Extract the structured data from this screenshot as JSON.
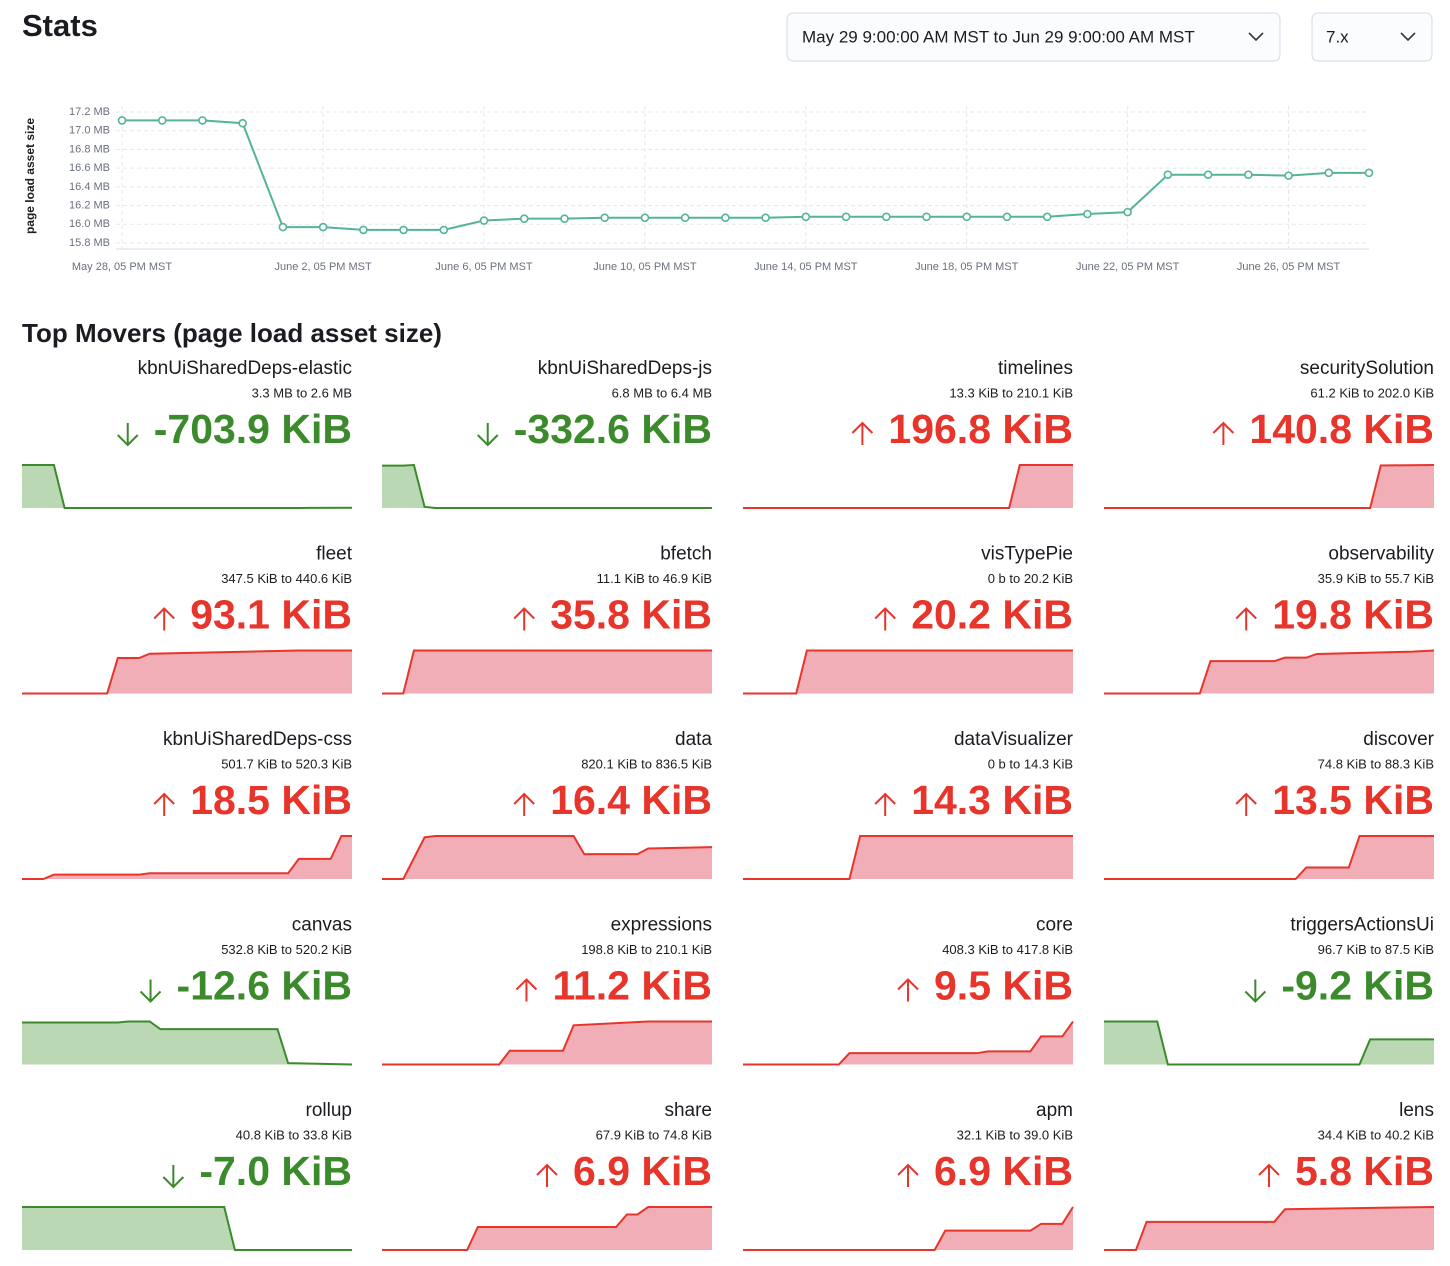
{
  "header": {
    "title": "Stats",
    "time_range": "May 29 9:00:00 AM MST to Jun 29 9:00:00 AM MST",
    "branch": "7.x"
  },
  "chart_data": {
    "type": "line",
    "y_label": "page load asset size",
    "color": "#54b399",
    "grid": true,
    "categories": [
      "May 28, 05 PM MST",
      null,
      null,
      null,
      null,
      "June 2, 05 PM MST",
      null,
      null,
      null,
      "June 6, 05 PM MST",
      null,
      null,
      null,
      "June 10, 05 PM MST",
      null,
      null,
      null,
      "June 14, 05 PM MST",
      null,
      null,
      null,
      "June 18, 05 PM MST",
      null,
      null,
      null,
      "June 22, 05 PM MST",
      null,
      null,
      null,
      "June 26, 05 PM MST",
      null,
      null
    ],
    "values": [
      17.11,
      17.11,
      17.11,
      17.08,
      15.97,
      15.97,
      15.94,
      15.94,
      15.94,
      16.04,
      16.06,
      16.06,
      16.07,
      16.07,
      16.07,
      16.07,
      16.07,
      16.08,
      16.08,
      16.08,
      16.08,
      16.08,
      16.08,
      16.08,
      16.11,
      16.13,
      16.53,
      16.53,
      16.53,
      16.52,
      16.55,
      16.55
    ],
    "ylim": [
      15.8,
      17.2
    ],
    "yticks": [
      {
        "value": 15.8,
        "label": "15.8 MB"
      },
      {
        "value": 16.0,
        "label": "16.0 MB"
      },
      {
        "value": 16.2,
        "label": "16.2 MB"
      },
      {
        "value": 16.4,
        "label": "16.4 MB"
      },
      {
        "value": 16.6,
        "label": "16.6 MB"
      },
      {
        "value": 16.8,
        "label": "16.8 MB"
      },
      {
        "value": 17.0,
        "label": "17.0 MB"
      },
      {
        "value": 17.2,
        "label": "17.2 MB"
      }
    ]
  },
  "top_movers": {
    "title": "Top Movers (page load asset size)",
    "colors": {
      "increase": "#e7352c",
      "increase_fill": "#f2aeb7",
      "decrease": "#3b8a2b",
      "decrease_fill": "#b9d8b3"
    },
    "cards": [
      {
        "name": "kbnUiSharedDeps-elastic",
        "range": "3.3 MB to 2.6 MB",
        "delta": {
          "value": -703.9,
          "label": "-703.9 KiB"
        },
        "trend": {
          "x": [
            0,
            3,
            4,
            26,
            27,
            31
          ],
          "values": [
            3379,
            3379,
            2670,
            2670,
            2673,
            2675
          ]
        }
      },
      {
        "name": "kbnUiSharedDeps-js",
        "range": "6.8 MB to 6.4 MB",
        "delta": {
          "value": -332.6,
          "label": "-332.6 KiB"
        },
        "trend": {
          "x": [
            0,
            2,
            3,
            4,
            5,
            31
          ],
          "values": [
            6958,
            6958,
            6963,
            6640,
            6631,
            6631
          ]
        }
      },
      {
        "name": "timelines",
        "range": "13.3 KiB to 210.1 KiB",
        "delta": {
          "value": 196.8,
          "label": "196.8 KiB"
        },
        "trend": {
          "x": [
            0,
            25,
            26,
            31
          ],
          "values": [
            13.3,
            13.3,
            210.1,
            210.1
          ]
        }
      },
      {
        "name": "securitySolution",
        "range": "61.2 KiB to 202.0 KiB",
        "delta": {
          "value": 140.8,
          "label": "140.8 KiB"
        },
        "trend": {
          "x": [
            0,
            25,
            26,
            31
          ],
          "values": [
            61.2,
            61.2,
            200.5,
            202.0
          ]
        }
      },
      {
        "name": "fleet",
        "range": "347.5 KiB to 440.6 KiB",
        "delta": {
          "value": 93.1,
          "label": "93.1 KiB"
        },
        "trend": {
          "x": [
            0,
            8,
            9,
            11,
            12,
            26,
            31
          ],
          "values": [
            347.5,
            347.5,
            424.3,
            424.3,
            433.6,
            440.6,
            440.6
          ]
        }
      },
      {
        "name": "bfetch",
        "range": "11.1 KiB to 46.9 KiB",
        "delta": {
          "value": 35.8,
          "label": "35.8 KiB"
        },
        "trend": {
          "x": [
            0,
            2,
            3,
            31
          ],
          "values": [
            11.1,
            11.1,
            46.9,
            46.9
          ]
        }
      },
      {
        "name": "visTypePie",
        "range": "0 b to 20.2 KiB",
        "delta": {
          "value": 20.2,
          "label": "20.2 KiB"
        },
        "trend": {
          "x": [
            0,
            5,
            6,
            31
          ],
          "values": [
            0,
            0,
            20.2,
            20.2
          ]
        }
      },
      {
        "name": "observability",
        "range": "35.9 KiB to 55.7 KiB",
        "delta": {
          "value": 19.8,
          "label": "19.8 KiB"
        },
        "trend": {
          "x": [
            0,
            9,
            10,
            16,
            17,
            19,
            20,
            29,
            31
          ],
          "values": [
            35.9,
            35.9,
            50.8,
            50.8,
            52.4,
            52.4,
            54.1,
            55.2,
            55.7
          ]
        }
      },
      {
        "name": "kbnUiSharedDeps-css",
        "range": "501.7 KiB to 520.3 KiB",
        "delta": {
          "value": 18.5,
          "label": "18.5 KiB"
        },
        "trend": {
          "x": [
            0,
            2,
            3,
            11,
            12,
            25,
            26,
            29,
            30,
            31
          ],
          "values": [
            501.7,
            501.7,
            503.6,
            503.6,
            504.2,
            504.2,
            510.4,
            510.4,
            520.3,
            520.3
          ]
        }
      },
      {
        "name": "data",
        "range": "820.1 KiB to 836.5 KiB",
        "delta": {
          "value": 16.4,
          "label": "16.4 KiB"
        },
        "trend": {
          "x": [
            0,
            2,
            4,
            5,
            18,
            19,
            24,
            25,
            31
          ],
          "values": [
            820.1,
            820.1,
            841.5,
            842.2,
            842.2,
            832.9,
            832.9,
            835.8,
            836.5
          ]
        }
      },
      {
        "name": "dataVisualizer",
        "range": "0 b to 14.3 KiB",
        "delta": {
          "value": 14.3,
          "label": "14.3 KiB"
        },
        "trend": {
          "x": [
            0,
            10,
            11,
            31
          ],
          "values": [
            0,
            0,
            14.3,
            14.3
          ]
        }
      },
      {
        "name": "discover",
        "range": "74.8 KiB to 88.3 KiB",
        "delta": {
          "value": 13.5,
          "label": "13.5 KiB"
        },
        "trend": {
          "x": [
            0,
            18,
            19,
            23,
            24,
            31
          ],
          "values": [
            74.8,
            74.8,
            78.4,
            78.4,
            88.3,
            88.3
          ]
        }
      },
      {
        "name": "canvas",
        "range": "532.8 KiB to 520.2 KiB",
        "delta": {
          "value": -12.6,
          "label": "-12.6 KiB"
        },
        "trend": {
          "x": [
            0,
            9,
            10,
            12,
            13,
            24,
            25,
            31
          ],
          "values": [
            532.8,
            532.8,
            533.1,
            533.1,
            530.8,
            530.8,
            520.6,
            520.2
          ]
        }
      },
      {
        "name": "expressions",
        "range": "198.8 KiB to 210.1 KiB",
        "delta": {
          "value": 11.2,
          "label": "11.2 KiB"
        },
        "trend": {
          "x": [
            0,
            11,
            12,
            17,
            18,
            25,
            31
          ],
          "values": [
            198.8,
            198.8,
            202.4,
            202.4,
            209.1,
            210.1,
            210.1
          ]
        }
      },
      {
        "name": "core",
        "range": "408.3 KiB to 417.8 KiB",
        "delta": {
          "value": 9.5,
          "label": "9.5 KiB"
        },
        "trend": {
          "x": [
            0,
            9,
            10,
            22,
            23,
            27,
            28,
            30,
            31
          ],
          "values": [
            408.3,
            408.3,
            410.8,
            410.8,
            411.2,
            411.2,
            414.5,
            414.5,
            417.8
          ]
        }
      },
      {
        "name": "triggersActionsUi",
        "range": "96.7 KiB to 87.5 KiB",
        "delta": {
          "value": -9.2,
          "label": "-9.2 KiB"
        },
        "trend": {
          "x": [
            0,
            5,
            6,
            24,
            25,
            31
          ],
          "values": [
            96.7,
            96.7,
            74.5,
            74.5,
            87.5,
            87.5
          ]
        }
      },
      {
        "name": "rollup",
        "range": "40.8 KiB to 33.8 KiB",
        "delta": {
          "value": -7.0,
          "label": "-7.0 KiB"
        },
        "trend": {
          "x": [
            0,
            19,
            20,
            31
          ],
          "values": [
            40.8,
            40.8,
            33.8,
            33.8
          ]
        }
      },
      {
        "name": "share",
        "range": "67.9 KiB to 74.8 KiB",
        "delta": {
          "value": 6.9,
          "label": "6.9 KiB"
        },
        "trend": {
          "x": [
            0,
            8,
            9,
            22,
            23,
            24,
            25,
            31
          ],
          "values": [
            67.9,
            67.9,
            71.6,
            71.6,
            73.6,
            73.6,
            74.8,
            74.8
          ]
        }
      },
      {
        "name": "apm",
        "range": "32.1 KiB to 39.0 KiB",
        "delta": {
          "value": 6.9,
          "label": "6.9 KiB"
        },
        "trend": {
          "x": [
            0,
            18,
            19,
            27,
            28,
            30,
            31
          ],
          "values": [
            32.1,
            32.1,
            35.2,
            35.2,
            36.3,
            36.3,
            39.0
          ]
        }
      },
      {
        "name": "lens",
        "range": "34.4 KiB to 40.2 KiB",
        "delta": {
          "value": 5.8,
          "label": "5.8 KiB"
        },
        "trend": {
          "x": [
            0,
            3,
            4,
            16,
            17,
            31
          ],
          "values": [
            34.4,
            34.4,
            38.2,
            38.2,
            39.9,
            40.2
          ]
        }
      }
    ]
  }
}
